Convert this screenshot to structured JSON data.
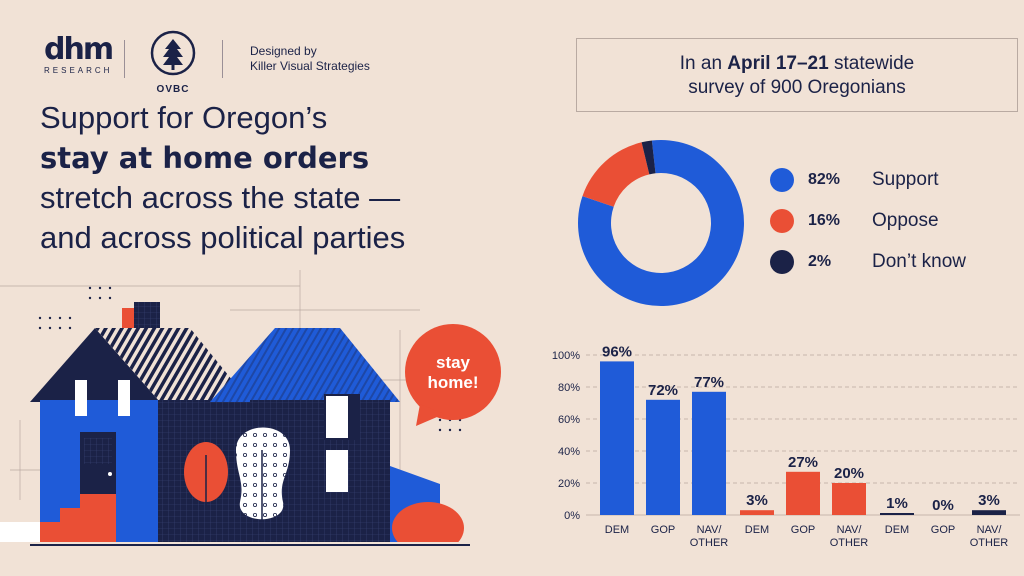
{
  "header": {
    "dhm_logo": "dhm",
    "dhm_sub": "RESEARCH",
    "ovbc_logo": "OVBC",
    "credit_line1": "Designed by",
    "credit_line2": "Killer Visual Strategies"
  },
  "headline": {
    "line1": "Support for Oregon’s",
    "line2": "stay at home orders",
    "line3": "stretch across the state —",
    "line4": "and across political parties"
  },
  "survey": {
    "prefix": "In an ",
    "dates": "April 17–21",
    "suffix": " statewide",
    "line2": "survey of 900 Oregonians"
  },
  "bubble": {
    "line1": "stay",
    "line2": "home!"
  },
  "colors": {
    "support": "#1f5bd8",
    "oppose": "#ea4f35",
    "dont_know": "#1b2247",
    "background": "#f1e2d6"
  },
  "chart_data": [
    {
      "type": "pie",
      "donut": true,
      "slices": [
        {
          "label": "Support",
          "value": 82,
          "display": "82%",
          "color": "#1f5bd8"
        },
        {
          "label": "Oppose",
          "value": 16,
          "display": "16%",
          "color": "#ea4f35"
        },
        {
          "label": "Don’t know",
          "value": 2,
          "display": "2%",
          "color": "#1b2247"
        }
      ],
      "legend_placement": "right"
    },
    {
      "type": "bar",
      "ylim": [
        0,
        100
      ],
      "yticks": [
        "0%",
        "20%",
        "40%",
        "60%",
        "80%",
        "100%"
      ],
      "grid": true,
      "groups": [
        {
          "series": "Support",
          "color": "#1f5bd8",
          "bars": [
            {
              "category": "DEM",
              "value": 96,
              "label": "96%"
            },
            {
              "category": "GOP",
              "value": 72,
              "label": "72%"
            },
            {
              "category": "NAV/\nOTHER",
              "value": 77,
              "label": "77%"
            }
          ]
        },
        {
          "series": "Oppose",
          "color": "#ea4f35",
          "bars": [
            {
              "category": "DEM",
              "value": 3,
              "label": "3%"
            },
            {
              "category": "GOP",
              "value": 27,
              "label": "27%"
            },
            {
              "category": "NAV/\nOTHER",
              "value": 20,
              "label": "20%"
            }
          ]
        },
        {
          "series": "Don’t know",
          "color": "#1b2247",
          "bars": [
            {
              "category": "DEM",
              "value": 1,
              "label": "1%"
            },
            {
              "category": "GOP",
              "value": 0,
              "label": "0%"
            },
            {
              "category": "NAV/\nOTHER",
              "value": 3,
              "label": "3%"
            }
          ]
        }
      ]
    }
  ]
}
